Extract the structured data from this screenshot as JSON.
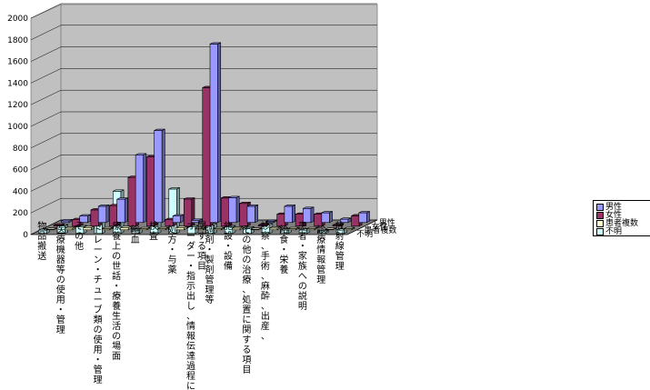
{
  "chart_data": {
    "type": "bar",
    "subtype": "3d-clustered-column",
    "y_ticks": [
      0,
      200,
      400,
      600,
      800,
      1000,
      1200,
      1400,
      1600,
      1800,
      2000
    ],
    "ylim": [
      0,
      2000
    ],
    "categories": [
      "物品搬送",
      "医療機器等の使用・管理",
      "その他",
      "ドレーン・チューブ類の使用・管理",
      "療養上の世話・療養生活の場面",
      "輸血",
      "検査",
      "処方・与薬",
      "オーダー・指示出し、情報伝達過程に関する項目",
      "調剤・製剤管理等",
      "施設・設備",
      "その他の治療、処置に関する項目",
      "診察、手術、麻酔、出産、",
      "給食・栄養",
      "患者・家族への説明",
      "診療情報管理",
      "放射線管理"
    ],
    "series": [
      {
        "name": "男性",
        "color": "#9999ff",
        "values": [
          15,
          60,
          150,
          215,
          625,
          850,
          60,
          20,
          1650,
          230,
          150,
          10,
          150,
          130,
          90,
          30,
          90
        ]
      },
      {
        "name": "女性",
        "color": "#993366",
        "values": [
          10,
          60,
          150,
          190,
          450,
          640,
          60,
          250,
          1280,
          260,
          210,
          10,
          110,
          110,
          110,
          10,
          95
        ]
      },
      {
        "name": "患者複数",
        "color": "#ffffcc",
        "values": [
          5,
          15,
          20,
          10,
          20,
          10,
          10,
          20,
          10,
          10,
          15,
          5,
          15,
          10,
          10,
          5,
          10
        ]
      },
      {
        "name": "不明",
        "color": "#ccffff",
        "values": [
          30,
          70,
          60,
          180,
          390,
          30,
          230,
          410,
          60,
          80,
          60,
          50,
          80,
          30,
          30,
          15,
          30
        ]
      }
    ],
    "legend_position": "right"
  }
}
